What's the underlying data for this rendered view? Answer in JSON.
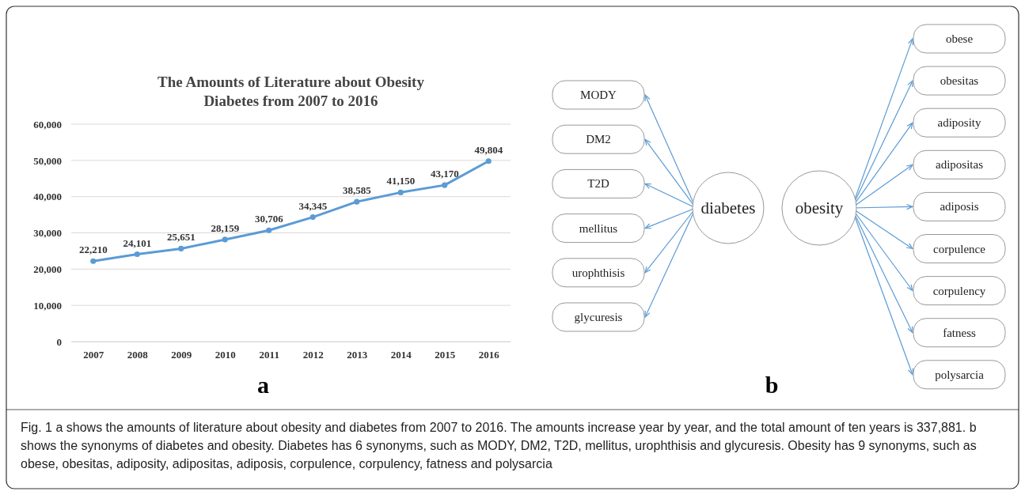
{
  "chart_data": [
    {
      "type": "line",
      "title": "The Amounts of Literature about Obesity\nDiabetes from 2007 to 2016",
      "categories": [
        "2007",
        "2008",
        "2009",
        "2010",
        "2011",
        "2012",
        "2013",
        "2014",
        "2015",
        "2016"
      ],
      "series": [
        {
          "color": "#5b9bd5",
          "values": [
            22210,
            24101,
            25651,
            28159,
            30706,
            34345,
            38585,
            41150,
            43170,
            49804
          ],
          "value_labels": [
            "22,210",
            "24,101",
            "25,651",
            "28,159",
            "30,706",
            "34,345",
            "38,585",
            "41,150",
            "43,170",
            "49,804"
          ]
        }
      ],
      "ylim": [
        0,
        60000
      ],
      "yticks": [
        {
          "value": 0,
          "label": "0"
        },
        {
          "value": 10000,
          "label": "10,000"
        },
        {
          "value": 20000,
          "label": "20,000"
        },
        {
          "value": 30000,
          "label": "30,000"
        },
        {
          "value": 40000,
          "label": "40,000"
        },
        {
          "value": 50000,
          "label": "50,000"
        },
        {
          "value": 60000,
          "label": "60,000"
        }
      ],
      "grid": "y",
      "marker": "circle",
      "annotations": [
        "a",
        "Fig. 1 a shows the amounts of literature about obesity and diabetes from 2007 to 2016. The amounts increase year by year, and the total amount of ten years is 337,881. b shows the synonyms of diabetes and obesity. Diabetes has 6 synonyms, such as MODY, DM2, T2D, mellitus, urophthisis and glycuresis. Obesity has 9 synonyms, such as obese, obesitas, adiposity, adipositas, adiposis, corpulence, corpulency, fatness and polysarcia"
      ]
    },
    {
      "type": "other",
      "annotations": [
        "diabetes",
        "obesity",
        "MODY",
        "DM2",
        "T2D",
        "mellitus",
        "urophthisis",
        "glycuresis",
        "obese",
        "obesitas",
        "adiposity",
        "adipositas",
        "adiposis",
        "corpulence",
        "corpulency",
        "fatness",
        "polysarcia",
        "b"
      ]
    }
  ]
}
